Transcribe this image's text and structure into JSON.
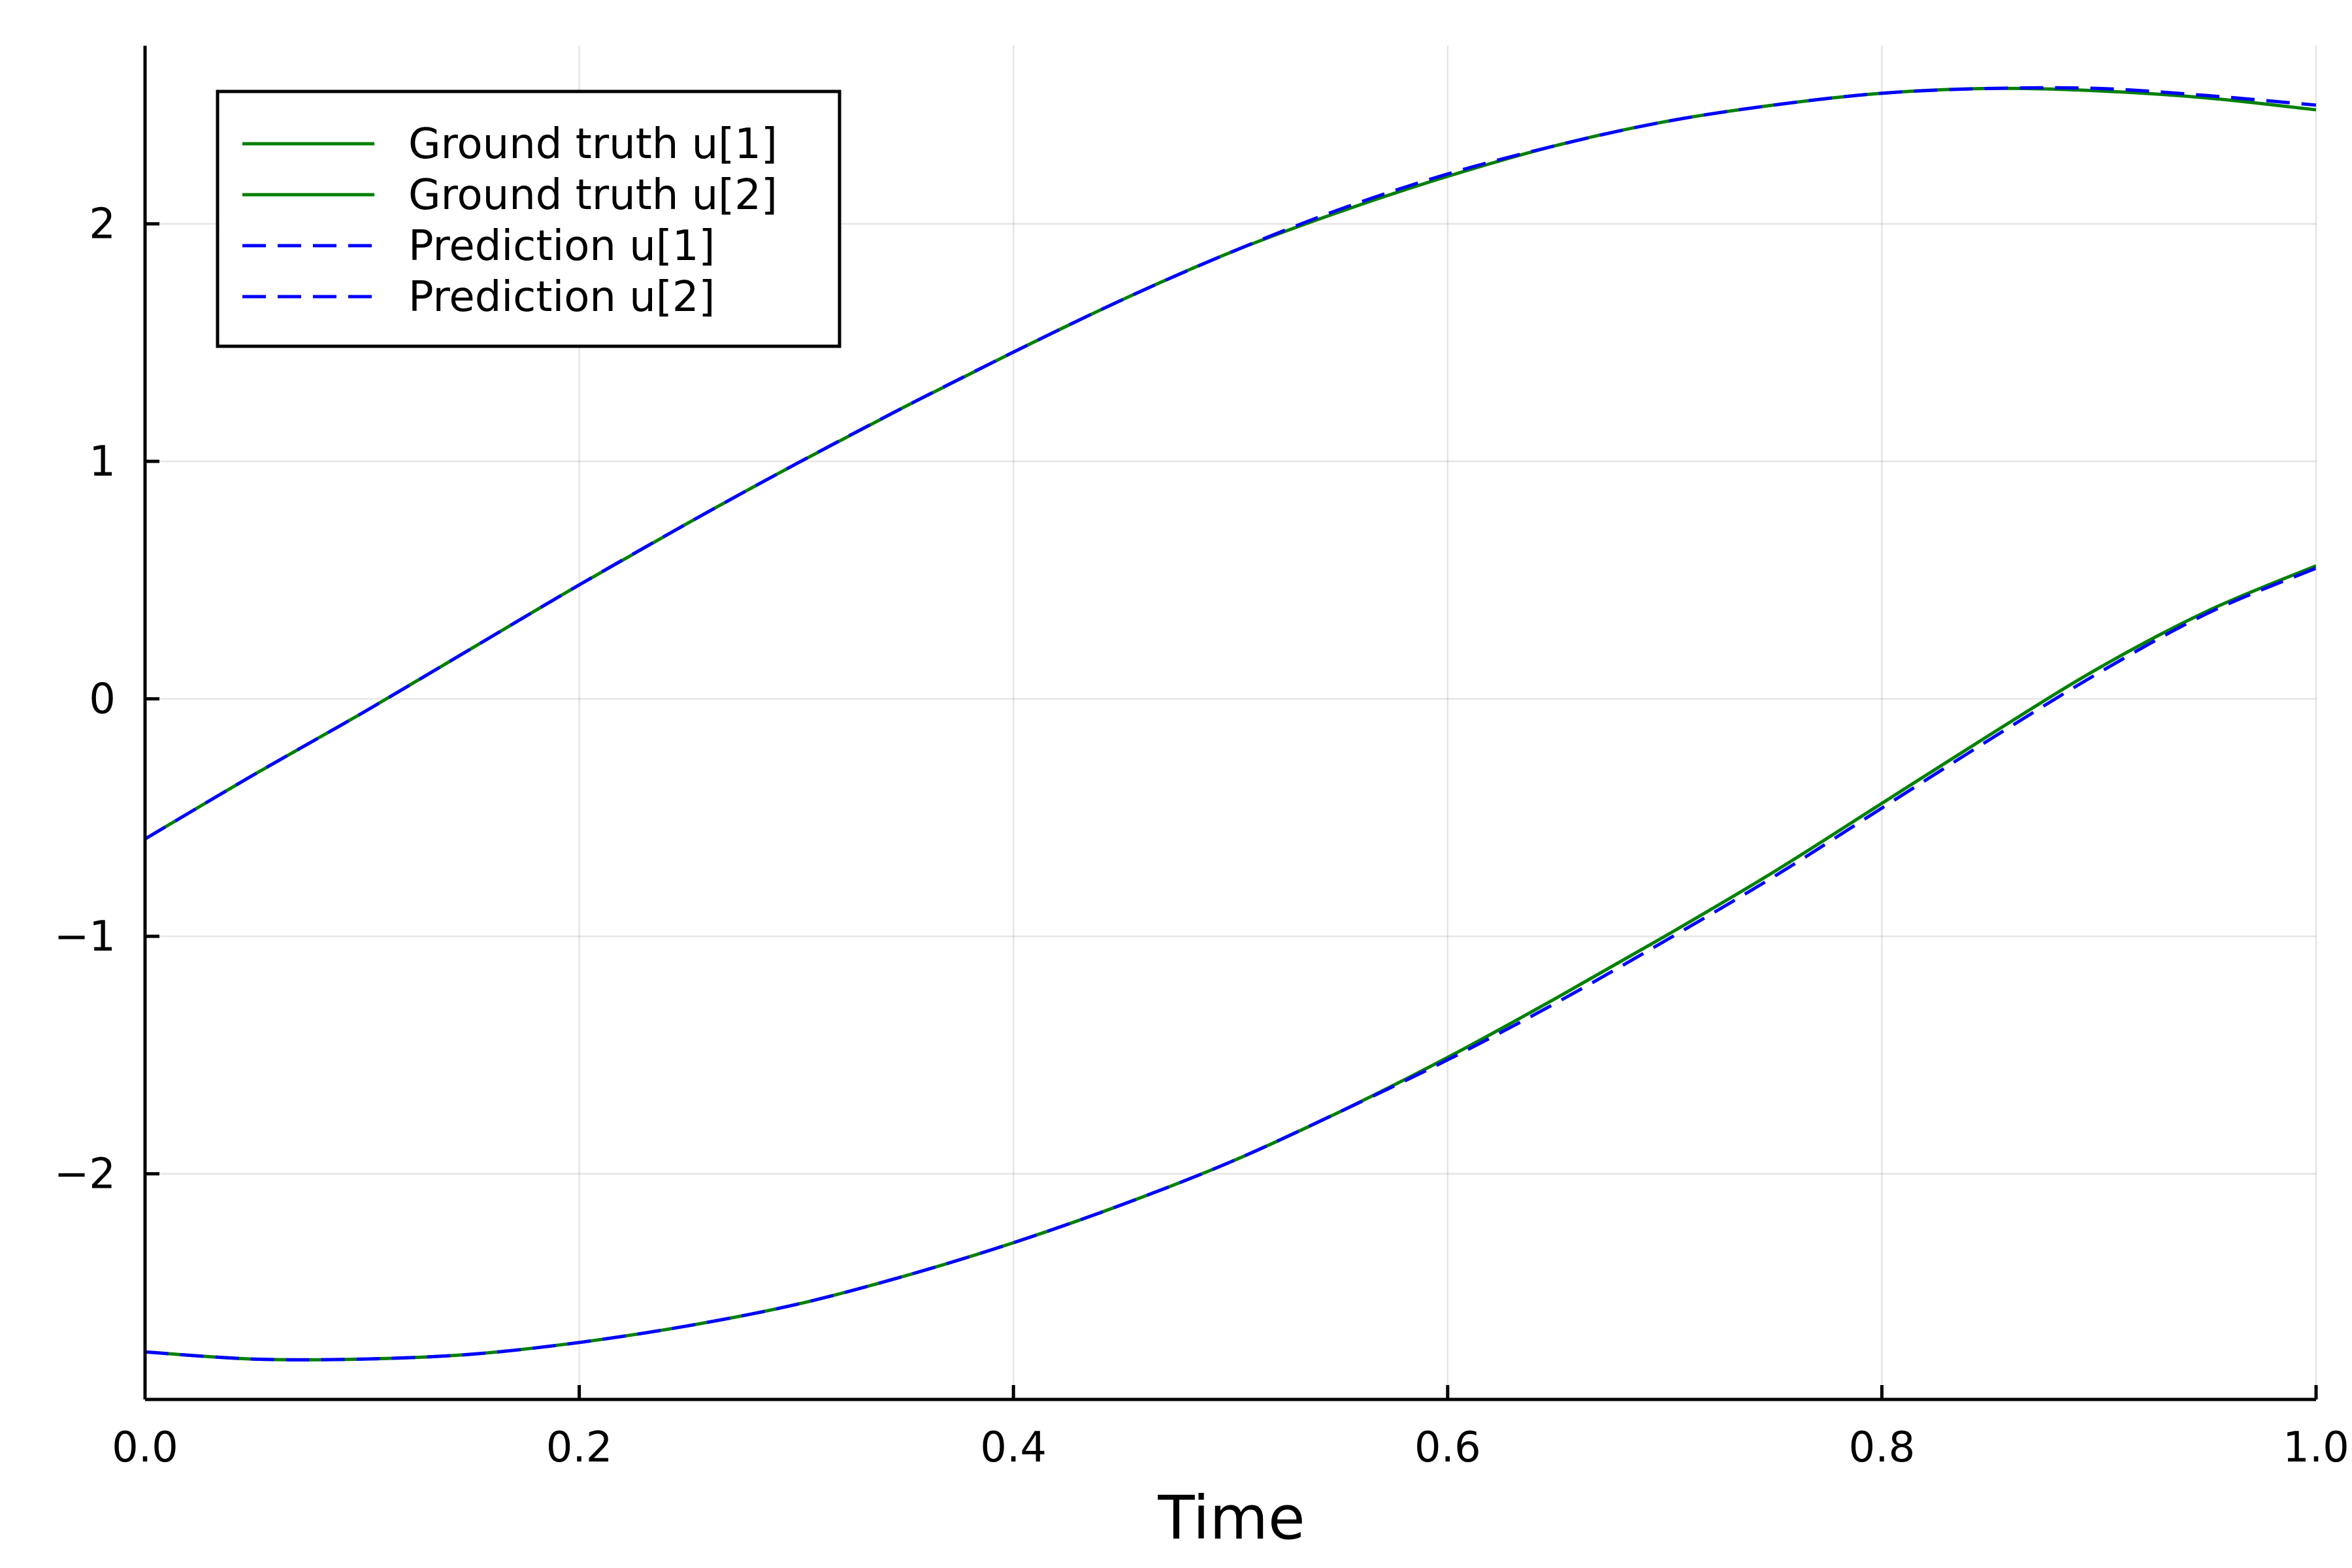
{
  "chart_data": {
    "type": "line",
    "xlabel": "Time",
    "ylabel": "",
    "xlim": [
      0.0,
      1.0
    ],
    "ylim": [
      -2.95,
      2.75
    ],
    "grid": true,
    "legend_position": "top-left",
    "x_ticks": [
      "0.0",
      "0.2",
      "0.4",
      "0.6",
      "0.8",
      "1.0"
    ],
    "x_tick_values": [
      0.0,
      0.2,
      0.4,
      0.6,
      0.8,
      1.0
    ],
    "y_ticks": [
      "−2",
      "−1",
      "0",
      "1",
      "2"
    ],
    "y_tick_values": [
      -2,
      -1,
      0,
      1,
      2
    ],
    "x": [
      0.0,
      0.05,
      0.1,
      0.15,
      0.2,
      0.25,
      0.3,
      0.35,
      0.4,
      0.45,
      0.5,
      0.55,
      0.6,
      0.65,
      0.7,
      0.75,
      0.8,
      0.85,
      0.9,
      0.95,
      1.0
    ],
    "series": [
      {
        "name": "Ground truth u[1]",
        "color": "#008000",
        "style": "solid",
        "values": [
          -0.59,
          -0.32,
          -0.06,
          0.21,
          0.48,
          0.74,
          0.99,
          1.23,
          1.46,
          1.68,
          1.88,
          2.05,
          2.2,
          2.33,
          2.43,
          2.5,
          2.55,
          2.57,
          2.56,
          2.53,
          2.48
        ]
      },
      {
        "name": "Ground truth u[2]",
        "color": "#008000",
        "style": "solid",
        "values": [
          -2.75,
          -2.78,
          -2.78,
          -2.76,
          -2.71,
          -2.64,
          -2.55,
          -2.43,
          -2.29,
          -2.13,
          -1.95,
          -1.74,
          -1.51,
          -1.26,
          -1.0,
          -0.73,
          -0.44,
          -0.15,
          0.13,
          0.37,
          0.56
        ]
      },
      {
        "name": "Prediction u[1]",
        "color": "#0000ff",
        "style": "dashed",
        "values": [
          -0.59,
          -0.32,
          -0.06,
          0.21,
          0.48,
          0.74,
          0.99,
          1.23,
          1.46,
          1.68,
          1.88,
          2.06,
          2.21,
          2.33,
          2.43,
          2.5,
          2.55,
          2.57,
          2.57,
          2.54,
          2.5
        ]
      },
      {
        "name": "Prediction u[2]",
        "color": "#0000ff",
        "style": "dashed",
        "values": [
          -2.75,
          -2.78,
          -2.78,
          -2.76,
          -2.71,
          -2.64,
          -2.55,
          -2.43,
          -2.29,
          -2.13,
          -1.95,
          -1.74,
          -1.52,
          -1.28,
          -1.02,
          -0.75,
          -0.46,
          -0.17,
          0.11,
          0.36,
          0.55
        ]
      }
    ]
  }
}
